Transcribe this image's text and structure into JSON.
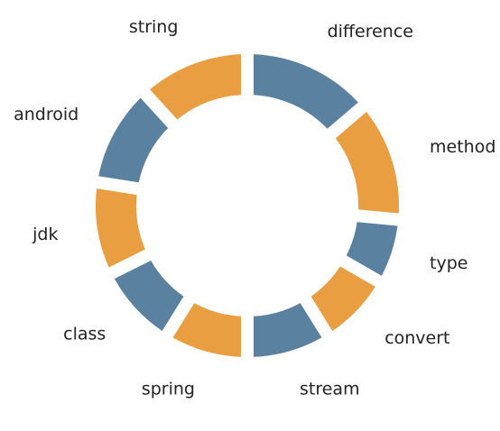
{
  "chart_data": {
    "type": "pie",
    "style": "donut",
    "title": "",
    "categories": [
      "difference",
      "method",
      "type",
      "convert",
      "stream",
      "spring",
      "class",
      "jdk",
      "android",
      "string"
    ],
    "values": [
      14,
      13,
      7,
      8,
      9,
      9,
      9,
      10,
      11,
      12
    ],
    "start_angle_deg": 90,
    "direction": "clockwise",
    "legend": "none",
    "colors": [
      "#5a82a0",
      "#e99e42"
    ]
  }
}
